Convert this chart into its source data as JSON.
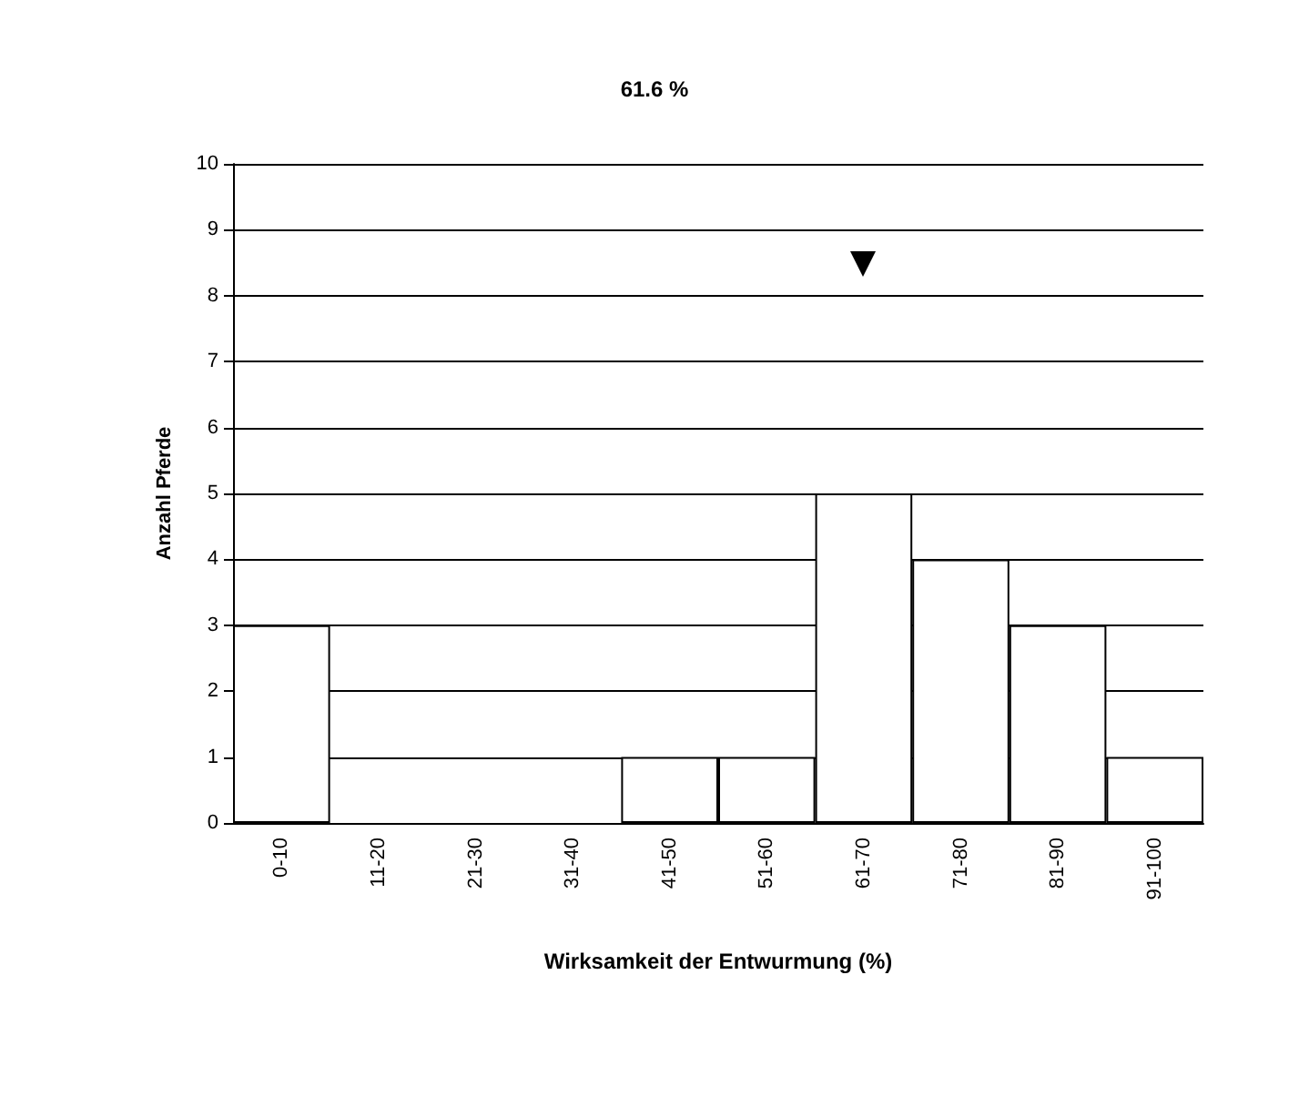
{
  "chart_data": {
    "type": "bar",
    "title": "61.6 %",
    "xlabel": "Wirksamkeit der Entwurmung (%)",
    "ylabel": "Anzahl Pferde",
    "categories": [
      "0-10",
      "11-20",
      "21-30",
      "31-40",
      "41-50",
      "51-60",
      "61-70",
      "71-80",
      "81-90",
      "91-100"
    ],
    "values": [
      3,
      0,
      0,
      0,
      1,
      1,
      5,
      4,
      3,
      1
    ],
    "color": "#ffffff",
    "ylim": [
      0,
      10
    ],
    "yticks": [
      0,
      1,
      2,
      3,
      4,
      5,
      6,
      7,
      8,
      9,
      10
    ],
    "grid": "y"
  }
}
